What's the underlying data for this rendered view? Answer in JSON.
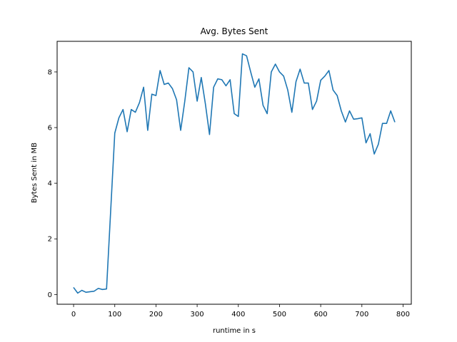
{
  "chart_data": {
    "type": "line",
    "title": "Avg. Bytes Sent",
    "xlabel": "runtime in s",
    "ylabel": "Bytes Sent in MB",
    "xlim": [
      -40,
      820
    ],
    "ylim": [
      -0.35,
      9.1
    ],
    "xticks": [
      0,
      100,
      200,
      300,
      400,
      500,
      600,
      700,
      800
    ],
    "yticks": [
      0,
      2,
      4,
      6,
      8
    ],
    "grid": false,
    "color": "#1f77b4",
    "series": [
      {
        "x": [
          0,
          10,
          20,
          30,
          40,
          50,
          60,
          70,
          80,
          90,
          100,
          110,
          120,
          130,
          140,
          150,
          160,
          170,
          180,
          190,
          200,
          210,
          220,
          230,
          240,
          250,
          260,
          270,
          280,
          290,
          300,
          310,
          320,
          330,
          340,
          350,
          360,
          370,
          380,
          390,
          400,
          410,
          420,
          430,
          440,
          450,
          460,
          470,
          480,
          490,
          500,
          510,
          520,
          530,
          540,
          550,
          560,
          570,
          580,
          590,
          600,
          610,
          620,
          630,
          640,
          650,
          660,
          670,
          680,
          690,
          700,
          710,
          720,
          730,
          740,
          750,
          760,
          770,
          780
        ],
        "y": [
          0.25,
          0.05,
          0.15,
          0.08,
          0.1,
          0.12,
          0.22,
          0.18,
          0.2,
          3.0,
          5.8,
          6.35,
          6.65,
          5.85,
          6.65,
          6.55,
          6.9,
          7.45,
          5.9,
          7.2,
          7.15,
          8.05,
          7.55,
          7.6,
          7.4,
          7.0,
          5.9,
          6.95,
          8.15,
          8.0,
          6.95,
          7.8,
          6.85,
          5.75,
          7.45,
          7.75,
          7.72,
          7.5,
          7.72,
          6.5,
          6.4,
          8.65,
          8.58,
          8.0,
          7.45,
          7.75,
          6.8,
          6.5,
          8.0,
          8.28,
          8.0,
          7.85,
          7.35,
          6.55,
          7.65,
          8.1,
          7.6,
          7.6,
          6.65,
          6.95,
          7.7,
          7.85,
          8.05,
          7.35,
          7.15,
          6.6,
          6.2,
          6.6,
          6.3,
          6.32,
          6.35,
          5.45,
          5.78,
          5.05,
          5.4,
          6.15,
          6.15,
          6.6,
          6.2
        ]
      }
    ]
  }
}
